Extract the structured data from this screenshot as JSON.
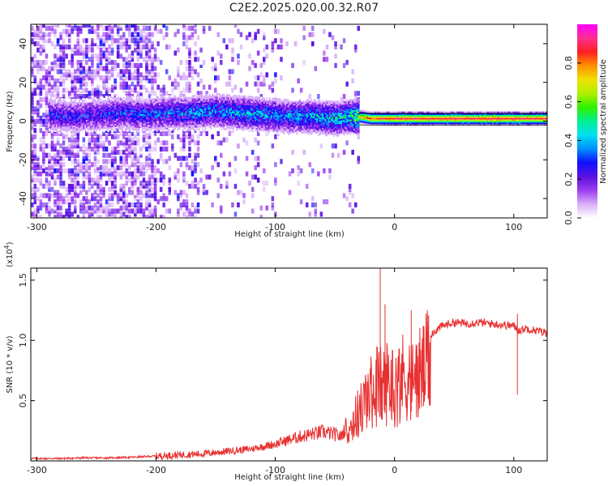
{
  "title": "C2E2.2025.020.00.32.R07",
  "chart_data": [
    {
      "type": "heatmap",
      "xlabel": "Height of straight line (km)",
      "ylabel": "Frequency (Hz)",
      "xlim": [
        -305,
        128
      ],
      "ylim": [
        -50,
        50
      ],
      "xticks": [
        -300,
        -200,
        -100,
        0,
        100
      ],
      "yticks": [
        -40,
        -20,
        0,
        20,
        40
      ],
      "colorbar": {
        "label": "Normalized spectral amplitude",
        "range": [
          0,
          1
        ],
        "ticks": [
          0.0,
          0.2,
          0.4,
          0.6,
          0.8
        ],
        "colors": [
          "#ffffff",
          "#d8b0f8",
          "#9c3cf0",
          "#5a10e0",
          "#1010ff",
          "#0090ff",
          "#00e0f0",
          "#00f090",
          "#30f000",
          "#b0f000",
          "#f0e000",
          "#ff9000",
          "#ff2020",
          "#ff3090",
          "#ff00ff"
        ]
      },
      "ridge": {
        "x": [
          -290,
          -270,
          -250,
          -230,
          -210,
          -190,
          -170,
          -150,
          -130,
          -110,
          -90,
          -70,
          -50,
          -40,
          -30,
          -20,
          0,
          20,
          40,
          60,
          80,
          100,
          125
        ],
        "center": [
          3,
          2,
          3,
          4,
          3,
          4,
          4,
          5,
          4,
          3,
          2,
          2,
          1,
          2,
          2,
          1,
          1,
          1,
          1,
          1,
          1,
          1,
          1
        ],
        "peak_amplitude": [
          0.35,
          0.35,
          0.35,
          0.38,
          0.4,
          0.42,
          0.45,
          0.45,
          0.48,
          0.48,
          0.45,
          0.5,
          0.55,
          0.55,
          0.75,
          0.85,
          0.9,
          0.9,
          0.9,
          0.9,
          0.92,
          0.9,
          0.9
        ]
      }
    },
    {
      "type": "line",
      "xlabel": "Height of straight line (km)",
      "ylabel": "SNR (10 * v/v)",
      "y_multiplier": "(x10^4)",
      "xlim": [
        -305,
        128
      ],
      "ylim": [
        0,
        1.6
      ],
      "xticks": [
        -300,
        -200,
        -100,
        0,
        100
      ],
      "yticks": [
        0.5,
        1.0,
        1.5
      ],
      "color": "#e83030",
      "series": [
        {
          "name": "",
          "x": [
            -305,
            -280,
            -260,
            -240,
            -220,
            -200,
            -180,
            -160,
            -140,
            -120,
            -100,
            -90,
            -80,
            -70,
            -60,
            -50,
            -45,
            -40,
            -35,
            -30,
            -25,
            -20,
            -15,
            -10,
            -5,
            0,
            5,
            10,
            15,
            20,
            25,
            30,
            40,
            50,
            60,
            70,
            80,
            90,
            100,
            105,
            110,
            115,
            120,
            128
          ],
          "values": [
            0.02,
            0.02,
            0.025,
            0.025,
            0.03,
            0.04,
            0.05,
            0.06,
            0.08,
            0.1,
            0.14,
            0.17,
            0.2,
            0.22,
            0.24,
            0.22,
            0.2,
            0.3,
            0.4,
            0.5,
            0.6,
            0.7,
            0.8,
            0.75,
            0.85,
            0.75,
            0.85,
            0.9,
            0.8,
            0.9,
            0.95,
            1.05,
            1.12,
            1.15,
            1.14,
            1.15,
            1.14,
            1.13,
            1.12,
            1.08,
            1.1,
            1.09,
            1.08,
            1.06
          ],
          "spikes": [
            {
              "x": -12,
              "value": 1.6
            },
            {
              "x": -8,
              "value": 1.3
            },
            {
              "x": 14,
              "value": 1.25
            },
            {
              "x": 103,
              "value": 1.22
            }
          ]
        }
      ]
    }
  ]
}
